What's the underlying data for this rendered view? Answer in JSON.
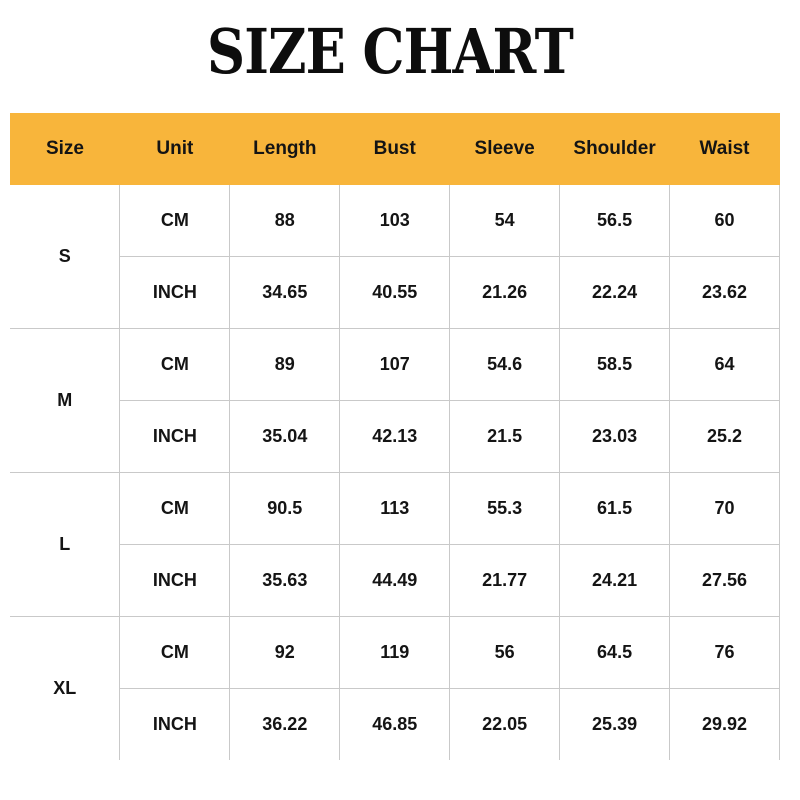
{
  "title": "SIZE CHART",
  "colors": {
    "header_bg": "#F8B53B",
    "border": "#C9C9C9",
    "text": "#141414",
    "background": "#FFFFFF"
  },
  "table": {
    "columns": [
      "Size",
      "Unit",
      "Length",
      "Bust",
      "Sleeve",
      "Shoulder",
      "Waist"
    ],
    "sizes": [
      {
        "label": "S",
        "rows": [
          {
            "unit": "CM",
            "values": [
              "88",
              "103",
              "54",
              "56.5",
              "60"
            ]
          },
          {
            "unit": "INCH",
            "values": [
              "34.65",
              "40.55",
              "21.26",
              "22.24",
              "23.62"
            ]
          }
        ]
      },
      {
        "label": "M",
        "rows": [
          {
            "unit": "CM",
            "values": [
              "89",
              "107",
              "54.6",
              "58.5",
              "64"
            ]
          },
          {
            "unit": "INCH",
            "values": [
              "35.04",
              "42.13",
              "21.5",
              "23.03",
              "25.2"
            ]
          }
        ]
      },
      {
        "label": "L",
        "rows": [
          {
            "unit": "CM",
            "values": [
              "90.5",
              "113",
              "55.3",
              "61.5",
              "70"
            ]
          },
          {
            "unit": "INCH",
            "values": [
              "35.63",
              "44.49",
              "21.77",
              "24.21",
              "27.56"
            ]
          }
        ]
      },
      {
        "label": "XL",
        "rows": [
          {
            "unit": "CM",
            "values": [
              "92",
              "119",
              "56",
              "64.5",
              "76"
            ]
          },
          {
            "unit": "INCH",
            "values": [
              "36.22",
              "46.85",
              "22.05",
              "25.39",
              "29.92"
            ]
          }
        ]
      }
    ]
  }
}
